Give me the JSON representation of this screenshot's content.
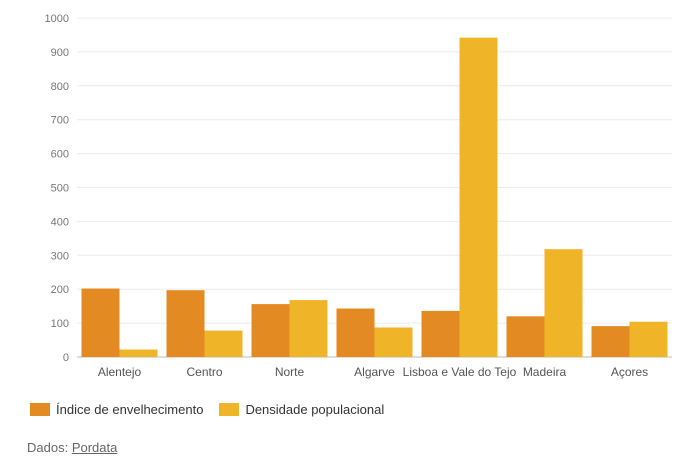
{
  "chart_data": {
    "type": "bar",
    "categories": [
      "Alentejo",
      "Centro",
      "Norte",
      "Algarve",
      "Lisboa e Vale do Tejo",
      "Madeira",
      "Açores"
    ],
    "series": [
      {
        "name": "Índice de envelhecimento",
        "color": "#e38a22",
        "values": [
          202,
          197,
          156,
          143,
          136,
          120,
          91
        ]
      },
      {
        "name": "Densidade populacional",
        "color": "#f0b429",
        "values": [
          22,
          78,
          168,
          87,
          942,
          318,
          104
        ]
      }
    ],
    "ylim": [
      0,
      1000
    ],
    "yticks": [
      0,
      100,
      200,
      300,
      400,
      500,
      600,
      700,
      800,
      900,
      1000
    ],
    "grid": true,
    "legend_position": "bottom-left"
  },
  "source": {
    "prefix": "Dados:",
    "link_text": "Pordata"
  }
}
